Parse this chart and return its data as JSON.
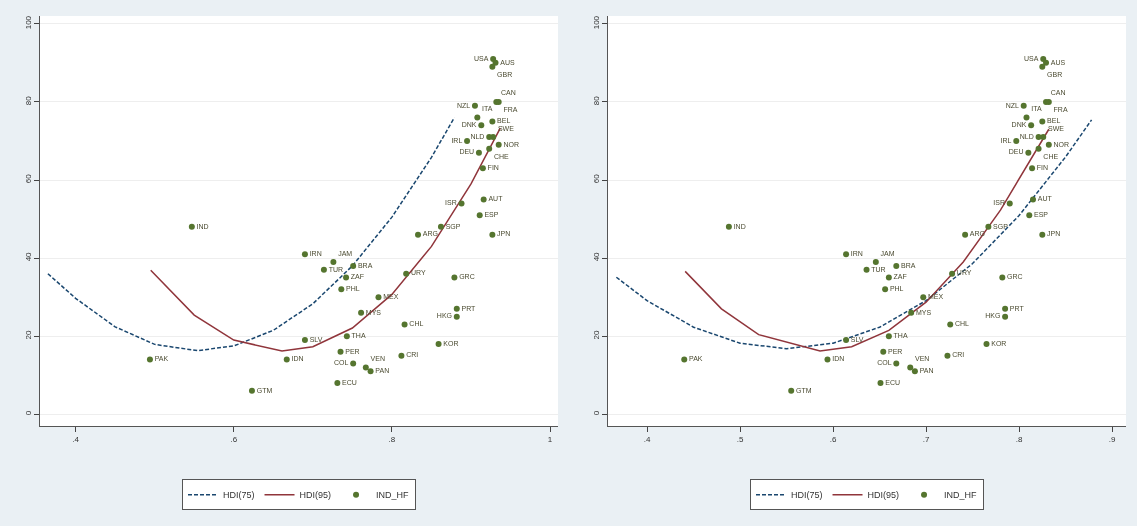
{
  "chart_data": [
    {
      "type": "scatter",
      "xlim": [
        0.355,
        1.01
      ],
      "ylim": [
        -3,
        102
      ],
      "xticks": [
        {
          "value": 0.4,
          "label": ".4"
        },
        {
          "value": 0.6,
          "label": ".6"
        },
        {
          "value": 0.8,
          "label": ".8"
        },
        1
      ],
      "yticks": [
        0,
        20,
        40,
        60,
        80,
        100
      ],
      "grid": "y",
      "legend": "bottom",
      "series": [
        {
          "name": "HDI(75)",
          "type": "line",
          "line_style": "dashed",
          "color": "#1a476f",
          "x": [
            0.365,
            0.4,
            0.45,
            0.5,
            0.554,
            0.6,
            0.65,
            0.7,
            0.75,
            0.8,
            0.85,
            0.879
          ],
          "values": [
            36,
            29.7,
            22.4,
            17.9,
            16.3,
            17.5,
            21.5,
            28.3,
            38,
            50.5,
            65.8,
            76
          ]
        },
        {
          "name": "HDI(95)",
          "type": "line",
          "line_style": "solid",
          "color": "#90353b",
          "x": [
            0.495,
            0.55,
            0.6,
            0.661,
            0.7,
            0.75,
            0.8,
            0.85,
            0.9,
            0.937
          ],
          "values": [
            36.9,
            25.4,
            19,
            16.2,
            17.3,
            22.1,
            30.7,
            43,
            59,
            73.3
          ]
        },
        {
          "name": "IND_HF",
          "marker": "circle",
          "color": "#55752f",
          "x": [
            0.547,
            0.69,
            0.494,
            0.623,
            0.667,
            0.69,
            0.714,
            0.726,
            0.751,
            0.742,
            0.736,
            0.783,
            0.761,
            0.816,
            0.743,
            0.735,
            0.751,
            0.767,
            0.773,
            0.731,
            0.812,
            0.859,
            0.882,
            0.882,
            0.879,
            0.818,
            0.833,
            0.862,
            0.927,
            0.911,
            0.888,
            0.916,
            0.915,
            0.91,
            0.895,
            0.923,
            0.935,
            0.928,
            0.923,
            0.913,
            0.908,
            0.927,
            0.905,
            0.932,
            0.935,
            0.928,
            0.931,
            0.927
          ],
          "values": [
            48,
            41,
            14,
            6,
            14,
            19,
            37,
            39,
            38,
            35,
            32,
            30,
            26,
            23,
            20,
            16,
            13,
            12,
            11,
            8,
            15,
            18,
            27,
            25,
            35,
            36,
            46,
            48,
            46,
            51,
            54,
            55,
            63,
            67,
            70,
            68,
            69,
            71,
            71,
            74,
            76,
            75,
            79,
            80,
            80,
            91,
            90,
            89
          ],
          "value_labels": [
            "IND",
            "IRN",
            "PAK",
            "GTM",
            "IDN",
            "SLV",
            "TUR",
            "JAM",
            "BRA",
            "ZAF",
            "PHL",
            "MEX",
            "MYS",
            "CHL",
            "THA",
            "PER",
            "COL",
            "VEN",
            "PAN",
            "ECU",
            "CRI",
            "KOR",
            "PRT",
            "HKG",
            "GRC",
            "URY",
            "ARG",
            "SGP",
            "JPN",
            "ESP",
            "ISR",
            "AUT",
            "FIN",
            "DEU",
            "IRL",
            "CHE",
            "NOR",
            "SWE",
            "NLD",
            "DNK",
            "ITA",
            "BEL",
            "NZL",
            "CAN",
            "FRA",
            "USA",
            "AUS",
            "GBR"
          ]
        }
      ]
    },
    {
      "type": "scatter",
      "xlim": [
        0.358,
        0.915
      ],
      "ylim": [
        -3,
        102
      ],
      "xticks": [
        {
          "value": 0.4,
          "label": ".4"
        },
        {
          "value": 0.5,
          "label": ".5"
        },
        {
          "value": 0.6,
          "label": ".6"
        },
        {
          "value": 0.7,
          "label": ".7"
        },
        {
          "value": 0.8,
          "label": ".8"
        },
        {
          "value": 0.9,
          "label": ".9"
        }
      ],
      "yticks": [
        0,
        20,
        40,
        60,
        80,
        100
      ],
      "grid": "y",
      "legend": "bottom",
      "series": [
        {
          "name": "HDI(75)",
          "type": "line",
          "line_style": "dashed",
          "color": "#1a476f",
          "x": [
            0.367,
            0.4,
            0.45,
            0.5,
            0.55,
            0.6,
            0.65,
            0.7,
            0.75,
            0.8,
            0.85,
            0.878
          ],
          "values": [
            35.1,
            29.1,
            22.3,
            18.2,
            16.8,
            18.2,
            22.3,
            29.1,
            38.6,
            50.9,
            65.9,
            75.4
          ]
        },
        {
          "name": "HDI(95)",
          "type": "line",
          "line_style": "solid",
          "color": "#90353b",
          "x": [
            0.441,
            0.48,
            0.52,
            0.586,
            0.62,
            0.66,
            0.7,
            0.74,
            0.78,
            0.832
          ],
          "values": [
            36.6,
            27,
            20.4,
            16.2,
            17.3,
            21.5,
            28.7,
            39,
            52.3,
            73
          ]
        },
        {
          "name": "IND_HF",
          "marker": "circle",
          "color": "#55752f",
          "x": [
            0.488,
            0.614,
            0.44,
            0.555,
            0.594,
            0.614,
            0.636,
            0.646,
            0.668,
            0.66,
            0.656,
            0.697,
            0.684,
            0.726,
            0.66,
            0.654,
            0.668,
            0.683,
            0.688,
            0.651,
            0.723,
            0.765,
            0.785,
            0.785,
            0.782,
            0.728,
            0.742,
            0.767,
            0.825,
            0.811,
            0.79,
            0.815,
            0.814,
            0.81,
            0.797,
            0.821,
            0.832,
            0.826,
            0.821,
            0.813,
            0.808,
            0.825,
            0.805,
            0.829,
            0.832,
            0.826,
            0.829,
            0.825
          ],
          "values": [
            48,
            41,
            14,
            6,
            14,
            19,
            37,
            39,
            38,
            35,
            32,
            30,
            26,
            23,
            20,
            16,
            13,
            12,
            11,
            8,
            15,
            18,
            27,
            25,
            35,
            36,
            46,
            48,
            46,
            51,
            54,
            55,
            63,
            67,
            70,
            68,
            69,
            71,
            71,
            74,
            76,
            75,
            79,
            80,
            80,
            91,
            90,
            89
          ],
          "value_labels": [
            "IND",
            "IRN",
            "PAK",
            "GTM",
            "IDN",
            "SLV",
            "TUR",
            "JAM",
            "BRA",
            "ZAF",
            "PHL",
            "MEX",
            "MYS",
            "CHL",
            "THA",
            "PER",
            "COL",
            "VEN",
            "PAN",
            "ECU",
            "CRI",
            "KOR",
            "PRT",
            "HKG",
            "GRC",
            "URY",
            "ARG",
            "SGP",
            "JPN",
            "ESP",
            "ISR",
            "AUT",
            "FIN",
            "DEU",
            "IRL",
            "CHE",
            "NOR",
            "SWE",
            "NLD",
            "DNK",
            "ITA",
            "BEL",
            "NZL",
            "CAN",
            "FRA",
            "USA",
            "AUS",
            "GBR"
          ]
        }
      ]
    }
  ]
}
